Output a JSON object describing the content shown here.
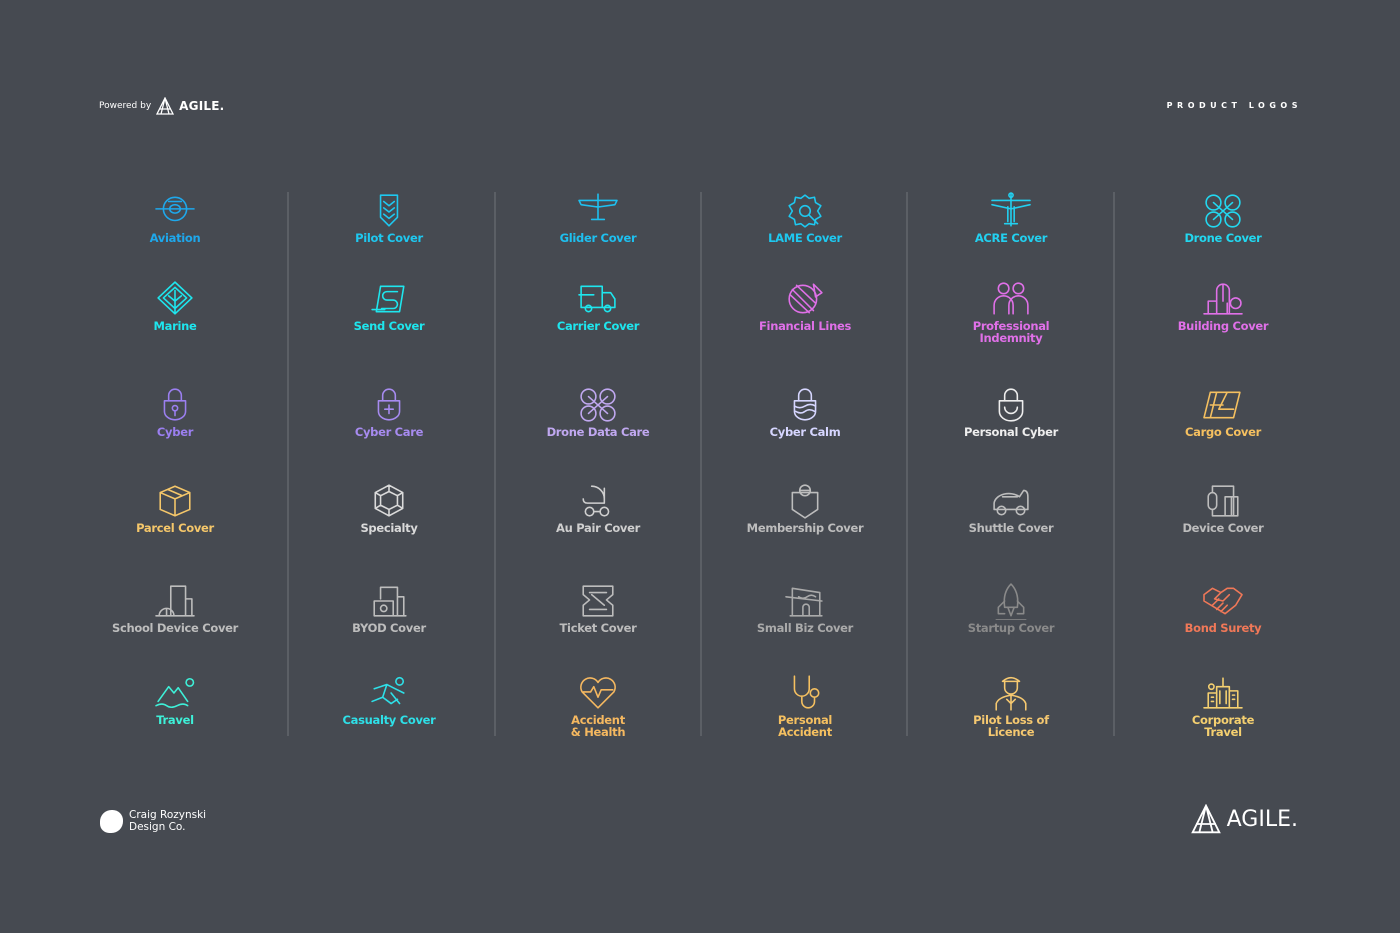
{
  "header": {
    "powered_by": "Powered by",
    "brand": "AGILE.",
    "section_title": "PRODUCT LOGOS"
  },
  "footer": {
    "credit_line1": "Craig Rozynski",
    "credit_line2": "Design Co.",
    "brand": "AGILE."
  },
  "columns": [
    {
      "items": [
        {
          "label": "Aviation",
          "icon": "propeller-plane-icon",
          "color": "#1ea8ec"
        },
        {
          "label": "Marine",
          "icon": "diamond-leaf-icon",
          "color": "#1ee6ee"
        },
        {
          "label": "Cyber",
          "icon": "padlock-keyhole-icon",
          "color": "#9b7ff0"
        },
        {
          "label": "Parcel Cover",
          "icon": "parcel-box-icon",
          "color": "#f5c76a"
        },
        {
          "label": "School Device Cover",
          "icon": "school-device-icon",
          "color": "#bdbdbd"
        },
        {
          "label": "Travel",
          "icon": "mountain-sun-icon",
          "color": "#3ef0d8"
        }
      ]
    },
    {
      "items": [
        {
          "label": "Pilot Cover",
          "icon": "chevron-badge-icon",
          "color": "#1ec8f0"
        },
        {
          "label": "Send Cover",
          "icon": "send-s-icon",
          "color": "#1ee6ee"
        },
        {
          "label": "Cyber Care",
          "icon": "padlock-plus-icon",
          "color": "#a78bf0"
        },
        {
          "label": "Specialty",
          "icon": "gem-hexagon-icon",
          "color": "#dadada"
        },
        {
          "label": "BYOD Cover",
          "icon": "byod-device-icon",
          "color": "#bdbdbd"
        },
        {
          "label": "Casualty Cover",
          "icon": "falling-person-icon",
          "color": "#2ee0e8"
        }
      ]
    },
    {
      "items": [
        {
          "label": "Glider Cover",
          "icon": "glider-icon",
          "color": "#1ec0f0"
        },
        {
          "label": "Carrier Cover",
          "icon": "delivery-truck-icon",
          "color": "#1ee6ee"
        },
        {
          "label": "Drone Data Care",
          "icon": "drone-icon",
          "color": "#c0a8f0"
        },
        {
          "label": "Au Pair Cover",
          "icon": "pram-icon",
          "color": "#cfcfcf"
        },
        {
          "label": "Ticket Cover",
          "icon": "ticket-icon",
          "color": "#bdbdbd"
        },
        {
          "label": "Accident\n& Health",
          "icon": "heart-pulse-icon",
          "color": "#f5b860"
        }
      ]
    },
    {
      "items": [
        {
          "label": "LAME Cover",
          "icon": "gear-wrench-icon",
          "color": "#1ec8f0"
        },
        {
          "label": "Financial Lines",
          "icon": "globe-pen-icon",
          "color": "#e070e8"
        },
        {
          "label": "Cyber Calm",
          "icon": "padlock-waves-icon",
          "color": "#d6d6ff"
        },
        {
          "label": "Membership Cover",
          "icon": "member-shield-icon",
          "color": "#bdbdbd"
        },
        {
          "label": "Small Biz Cover",
          "icon": "shopfront-icon",
          "color": "#aaaaaa"
        },
        {
          "label": "Personal\nAccident",
          "icon": "stethoscope-icon",
          "color": "#f5c060"
        }
      ]
    },
    {
      "items": [
        {
          "label": "ACRE Cover",
          "icon": "plane-topdown-icon",
          "color": "#22d0f0"
        },
        {
          "label": "Professional\nIndemnity",
          "icon": "two-people-icon",
          "color": "#e070e8"
        },
        {
          "label": "Personal Cyber",
          "icon": "padlock-smile-icon",
          "color": "#eeeeee"
        },
        {
          "label": "Shuttle Cover",
          "icon": "car-icon",
          "color": "#bdbdbd"
        },
        {
          "label": "Startup Cover",
          "icon": "rocket-icon",
          "color": "#8a8a8a"
        },
        {
          "label": "Pilot Loss of\nLicence",
          "icon": "pilot-person-icon",
          "color": "#f5c870"
        }
      ]
    },
    {
      "items": [
        {
          "label": "Drone Cover",
          "icon": "drone-icon",
          "color": "#22d8f0"
        },
        {
          "label": "Building Cover",
          "icon": "buildings-icon",
          "color": "#e070e8"
        },
        {
          "label": "Cargo Cover",
          "icon": "cargo-map-icon",
          "color": "#f5c060"
        },
        {
          "label": "Device Cover",
          "icon": "watch-phone-icon",
          "color": "#bdbdbd"
        },
        {
          "label": "Bond Surety",
          "icon": "handshake-icon",
          "color": "#f07858"
        },
        {
          "label": "Corporate\nTravel",
          "icon": "city-skyline-icon",
          "color": "#f5d070"
        }
      ]
    }
  ]
}
